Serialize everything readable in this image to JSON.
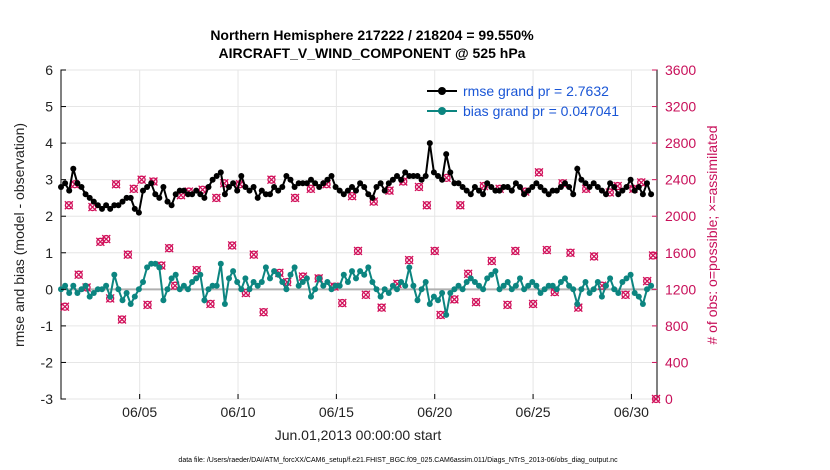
{
  "chart_data": {
    "type": "line",
    "title": [
      "Northern Hemisphere 217222 / 218204 = 99.550%",
      "AIRCRAFT_V_WIND_COMPONENT @ 525 hPa"
    ],
    "xlabel": "Jun.01,2013 00:00:00 start",
    "ylabel_left": "rmse and bias (model - observation)",
    "ylabel_right": "# of obs: o=possible; ×=assimilated",
    "xlim": [
      1,
      31.3
    ],
    "ylim_left": [
      -3,
      6
    ],
    "ylim_right": [
      0,
      3600
    ],
    "x_tick_values": [
      5,
      10,
      15,
      20,
      25,
      30
    ],
    "x_tick_labels": [
      "06/05",
      "06/10",
      "06/15",
      "06/20",
      "06/25",
      "06/30"
    ],
    "y_ticks_left": [
      "-3",
      "-2",
      "-1",
      "0",
      "1",
      "2",
      "3",
      "4",
      "5",
      "6"
    ],
    "y_ticks_right": [
      "0",
      "400",
      "800",
      "1200",
      "1600",
      "2000",
      "2400",
      "2800",
      "3200",
      "3600"
    ],
    "legend": [
      "rmse grand pr = 2.7632",
      "bias grand pr = 0.047041"
    ],
    "colors": {
      "rmse": "#000000",
      "bias": "#0c8580",
      "obs": "#d1105a",
      "legend_text": "#1a56d6",
      "zero_line": "#b0b0b0"
    },
    "series_rmse": [
      2.8,
      2.9,
      2.7,
      3.3,
      2.9,
      2.8,
      2.6,
      2.5,
      2.4,
      2.3,
      2.2,
      2.3,
      2.2,
      2.3,
      2.3,
      2.4,
      2.5,
      2.5,
      2.2,
      2.1,
      2.7,
      2.8,
      2.9,
      2.6,
      2.5,
      2.8,
      2.4,
      2.3,
      2.6,
      2.7,
      2.7,
      2.6,
      2.6,
      2.7,
      2.6,
      2.5,
      2.8,
      3.0,
      3.1,
      3.2,
      2.6,
      2.8,
      2.9,
      2.7,
      3.1,
      2.8,
      2.7,
      2.8,
      2.5,
      2.7,
      2.6,
      2.6,
      2.8,
      2.7,
      2.8,
      3.1,
      3.0,
      2.8,
      2.9,
      2.9,
      2.9,
      3.0,
      2.9,
      2.8,
      2.9,
      3.0,
      3.1,
      2.8,
      2.7,
      2.6,
      2.7,
      2.8,
      2.7,
      2.9,
      2.8,
      2.6,
      2.5,
      2.8,
      2.9,
      2.7,
      2.9,
      3.0,
      3.1,
      3.0,
      3.2,
      3.1,
      3.1,
      3.1,
      3.0,
      3.1,
      4.0,
      3.2,
      3.1,
      3.0,
      3.7,
      3.2,
      2.9,
      2.9,
      2.8,
      2.7,
      2.6,
      2.8,
      2.7,
      2.6,
      2.9,
      2.8,
      2.7,
      2.7,
      2.8,
      2.8,
      2.7,
      2.9,
      2.8,
      2.6,
      2.7,
      2.8,
      2.9,
      2.8,
      2.7,
      2.6,
      2.7,
      2.7,
      2.8,
      2.9,
      2.8,
      2.6,
      3.3,
      3.0,
      2.9,
      2.8,
      2.9,
      2.8,
      2.7,
      2.6,
      2.9,
      2.8,
      2.6,
      2.7,
      2.8,
      3.0,
      2.7,
      2.8,
      2.6,
      2.9,
      2.6
    ],
    "series_bias": [
      0.0,
      0.1,
      -0.1,
      0.1,
      -0.1,
      0.0,
      0.1,
      -0.2,
      -0.1,
      0.0,
      0.0,
      0.1,
      -0.2,
      0.4,
      0.0,
      -0.3,
      -0.1,
      -0.4,
      -0.2,
      0.0,
      0.2,
      0.6,
      0.7,
      0.7,
      0.6,
      -0.3,
      0.0,
      0.3,
      0.4,
      0.0,
      0.1,
      0.0,
      0.2,
      0.3,
      0.4,
      -0.3,
      0.0,
      0.1,
      0.1,
      0.7,
      -0.4,
      0.3,
      0.5,
      0.2,
      0.0,
      0.3,
      0.0,
      0.2,
      0.1,
      0.2,
      0.6,
      0.3,
      0.5,
      0.4,
      0.2,
      0.0,
      0.4,
      0.6,
      0.1,
      0.2,
      0.3,
      -0.2,
      0.0,
      0.3,
      0.1,
      0.2,
      0.0,
      0.1,
      0.1,
      0.4,
      0.2,
      0.5,
      0.3,
      0.5,
      0.4,
      0.6,
      0.2,
      0.0,
      -0.2,
      0.0,
      -0.1,
      0.1,
      0.0,
      0.2,
      0.1,
      0.6,
      0.1,
      -0.3,
      0.0,
      0.2,
      -0.4,
      -0.2,
      -0.3,
      -0.1,
      -0.7,
      -0.1,
      0.0,
      0.1,
      0.0,
      0.2,
      0.3,
      0.2,
      0.1,
      0.0,
      0.3,
      0.4,
      0.5,
      0.0,
      0.1,
      0.2,
      0.0,
      0.1,
      0.3,
      0.0,
      0.1,
      0.2,
      0.1,
      -0.1,
      0.0,
      0.1,
      0.1,
      0.0,
      0.2,
      0.3,
      0.1,
      0.0,
      -0.4,
      0.0,
      0.2,
      -0.1,
      0.0,
      0.2,
      -0.2,
      0.1,
      0.3,
      0.0,
      -0.1,
      0.2,
      0.3,
      0.4,
      -0.1,
      -0.2,
      -0.4,
      0.0,
      0.1
    ],
    "obs_points": [
      [
        1.2,
        1010
      ],
      [
        1.4,
        2120
      ],
      [
        1.7,
        2350
      ],
      [
        1.9,
        1360
      ],
      [
        2.3,
        1220
      ],
      [
        2.6,
        2100
      ],
      [
        3.0,
        1720
      ],
      [
        3.3,
        1750
      ],
      [
        3.5,
        1100
      ],
      [
        3.8,
        2350
      ],
      [
        4.1,
        870
      ],
      [
        4.4,
        1580
      ],
      [
        4.7,
        2300
      ],
      [
        5.1,
        2400
      ],
      [
        5.4,
        1030
      ],
      [
        5.7,
        2380
      ],
      [
        6.1,
        1460
      ],
      [
        6.5,
        1650
      ],
      [
        6.8,
        1240
      ],
      [
        7.1,
        2230
      ],
      [
        7.5,
        2270
      ],
      [
        7.9,
        1410
      ],
      [
        8.2,
        2290
      ],
      [
        8.6,
        1040
      ],
      [
        8.9,
        2200
      ],
      [
        9.3,
        2360
      ],
      [
        9.7,
        1680
      ],
      [
        10.1,
        2350
      ],
      [
        10.4,
        1160
      ],
      [
        10.8,
        1580
      ],
      [
        11.3,
        950
      ],
      [
        11.7,
        2400
      ],
      [
        12.1,
        1380
      ],
      [
        12.5,
        1280
      ],
      [
        12.9,
        2200
      ],
      [
        13.3,
        1340
      ],
      [
        13.7,
        2300
      ],
      [
        14.1,
        1320
      ],
      [
        14.5,
        2350
      ],
      [
        14.9,
        1230
      ],
      [
        15.3,
        1050
      ],
      [
        15.8,
        2220
      ],
      [
        16.1,
        1620
      ],
      [
        16.5,
        1140
      ],
      [
        16.9,
        2160
      ],
      [
        17.3,
        1000
      ],
      [
        17.7,
        2280
      ],
      [
        18.1,
        1260
      ],
      [
        18.4,
        2380
      ],
      [
        18.7,
        1520
      ],
      [
        19.2,
        2320
      ],
      [
        19.6,
        2120
      ],
      [
        20.0,
        1620
      ],
      [
        20.3,
        920
      ],
      [
        20.6,
        2420
      ],
      [
        21.0,
        1090
      ],
      [
        21.3,
        2120
      ],
      [
        21.7,
        1370
      ],
      [
        22.1,
        1060
      ],
      [
        22.5,
        2330
      ],
      [
        22.9,
        1510
      ],
      [
        23.3,
        2300
      ],
      [
        23.7,
        1030
      ],
      [
        24.1,
        1620
      ],
      [
        24.6,
        2270
      ],
      [
        25.0,
        1040
      ],
      [
        25.3,
        2480
      ],
      [
        25.7,
        1630
      ],
      [
        26.1,
        1170
      ],
      [
        26.5,
        2360
      ],
      [
        26.9,
        1600
      ],
      [
        27.3,
        1000
      ],
      [
        27.7,
        2300
      ],
      [
        28.1,
        1560
      ],
      [
        28.5,
        1240
      ],
      [
        28.9,
        2260
      ],
      [
        29.3,
        2330
      ],
      [
        29.7,
        1140
      ],
      [
        30.1,
        2300
      ],
      [
        30.5,
        2370
      ],
      [
        30.8,
        1290
      ],
      [
        31.1,
        1570
      ],
      [
        31.25,
        0
      ]
    ]
  },
  "footer": "data file: /Users/raeder/DAI/ATM_forcXX/CAM6_setup/f.e21.FHIST_BGC.f09_025.CAM6assim.011/Diags_NTrS_2013-06/obs_diag_output.nc"
}
